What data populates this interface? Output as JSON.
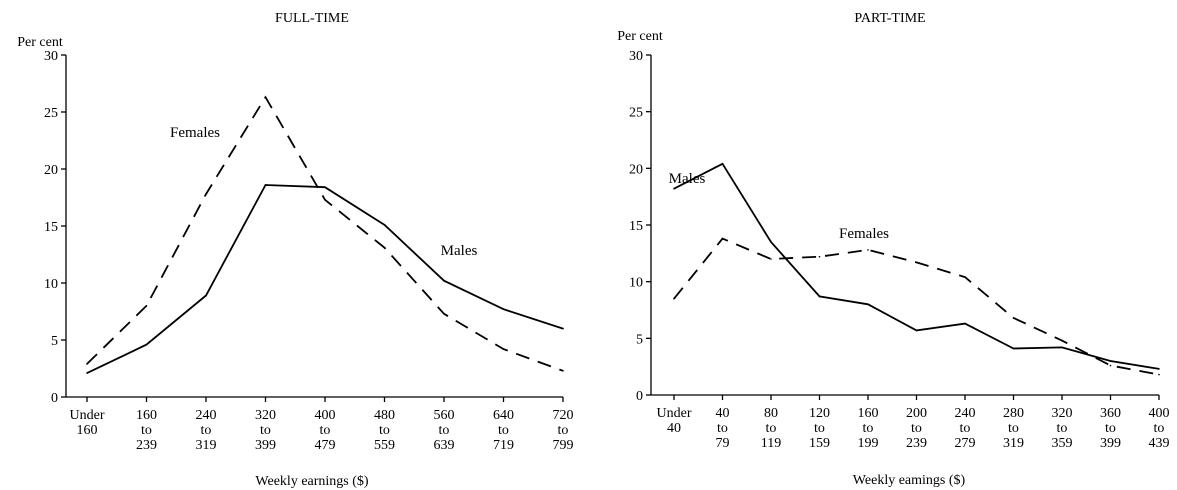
{
  "chart_data": [
    {
      "type": "line",
      "title": "FULL-TIME",
      "ylabel": "Per cent",
      "xlabel": "Weekly earnings ($)",
      "ylim": [
        0,
        30
      ],
      "yticks": [
        "0",
        "5",
        "10",
        "15",
        "20",
        "25",
        "30"
      ],
      "categories": [
        [
          "Under",
          "160"
        ],
        [
          "160",
          "to",
          "239"
        ],
        [
          "240",
          "to",
          "319"
        ],
        [
          "320",
          "to",
          "399"
        ],
        [
          "400",
          "to",
          "479"
        ],
        [
          "480",
          "to",
          "559"
        ],
        [
          "560",
          "to",
          "639"
        ],
        [
          "640",
          "to",
          "719"
        ],
        [
          "720",
          "to",
          "799"
        ]
      ],
      "series": [
        {
          "name": "Males",
          "style": "solid",
          "values": [
            2.1,
            4.6,
            8.9,
            18.6,
            18.4,
            15.1,
            10.2,
            7.7,
            6.0
          ]
        },
        {
          "name": "Females",
          "style": "dashed",
          "values": [
            2.9,
            8.0,
            17.8,
            26.3,
            17.3,
            13.1,
            7.3,
            4.2,
            2.3
          ]
        }
      ],
      "grid": false
    },
    {
      "type": "line",
      "title": "PART-TIME",
      "ylabel": "Per cent",
      "xlabel": "Weekly eamings ($)",
      "ylim": [
        0,
        30
      ],
      "yticks": [
        "0",
        "5",
        "10",
        "15",
        "20",
        "25",
        "30"
      ],
      "categories": [
        [
          "Under",
          "40"
        ],
        [
          "40",
          "to",
          "79"
        ],
        [
          "80",
          "to",
          "119"
        ],
        [
          "120",
          "to",
          "159"
        ],
        [
          "160",
          "to",
          "199"
        ],
        [
          "200",
          "to",
          "239"
        ],
        [
          "240",
          "to",
          "279"
        ],
        [
          "280",
          "to",
          "319"
        ],
        [
          "320",
          "to",
          "359"
        ],
        [
          "360",
          "to",
          "399"
        ],
        [
          "400",
          "to",
          "439"
        ]
      ],
      "series": [
        {
          "name": "Males",
          "style": "solid",
          "values": [
            18.2,
            20.4,
            13.5,
            8.7,
            8.0,
            5.7,
            6.3,
            4.1,
            4.2,
            3.0,
            2.3
          ]
        },
        {
          "name": "Females",
          "style": "dashed",
          "values": [
            8.5,
            13.8,
            12.0,
            12.2,
            12.8,
            11.7,
            10.4,
            6.8,
            4.8,
            2.6,
            1.8
          ]
        }
      ],
      "grid": false
    }
  ]
}
